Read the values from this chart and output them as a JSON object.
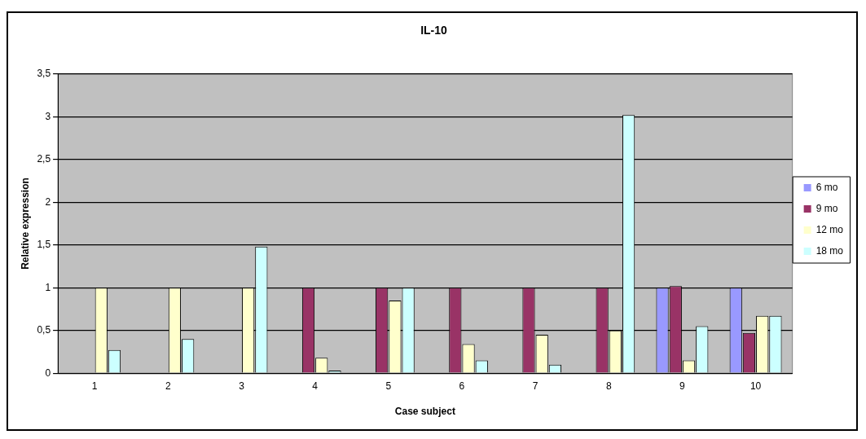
{
  "chart_data": {
    "type": "bar",
    "title": "IL-10",
    "xlabel": "Case subject",
    "ylabel": "Relative expression",
    "categories": [
      "1",
      "2",
      "3",
      "4",
      "5",
      "6",
      "7",
      "8",
      "9",
      "10"
    ],
    "series": [
      {
        "name": "6 mo",
        "color": "#9999ff",
        "values": [
          null,
          null,
          null,
          null,
          null,
          null,
          null,
          null,
          1,
          1
        ]
      },
      {
        "name": "9 mo",
        "color": "#993366",
        "values": [
          null,
          null,
          null,
          1,
          1,
          1,
          1,
          1,
          1.02,
          0.47
        ]
      },
      {
        "name": "12 mo",
        "color": "#ffffcc",
        "values": [
          1,
          1,
          1,
          0.18,
          0.85,
          0.34,
          0.45,
          0.5,
          0.15,
          0.67
        ]
      },
      {
        "name": "18 mo",
        "color": "#ccffff",
        "values": [
          0.27,
          0.4,
          1.48,
          0.03,
          1,
          0.15,
          0.1,
          3.02,
          0.55,
          0.67
        ]
      }
    ],
    "ylim": [
      0,
      3.5
    ],
    "yticks": [
      {
        "value": 0,
        "label": "0"
      },
      {
        "value": 0.5,
        "label": "0,5"
      },
      {
        "value": 1,
        "label": "1"
      },
      {
        "value": 1.5,
        "label": "1,5"
      },
      {
        "value": 2,
        "label": "2"
      },
      {
        "value": 2.5,
        "label": "2,5"
      },
      {
        "value": 3,
        "label": "3"
      },
      {
        "value": 3.5,
        "label": "3,5"
      }
    ],
    "grid": "y",
    "legend": "right"
  }
}
